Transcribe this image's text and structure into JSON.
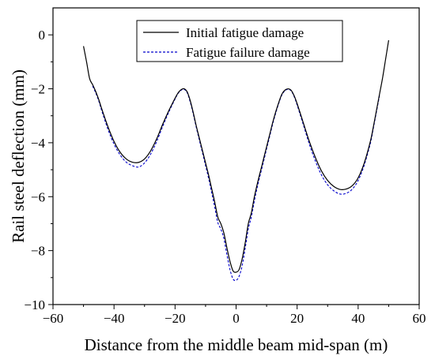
{
  "chart_data": {
    "type": "line",
    "xlabel": "Distance from the middle beam mid-span (m)",
    "ylabel": "Rail steel deflection (mm)",
    "xlim": [
      -60,
      60
    ],
    "ylim": [
      -10,
      1
    ],
    "xticks": [
      -60,
      -40,
      -20,
      0,
      20,
      40,
      60
    ],
    "yticks": [
      -10,
      -8,
      -6,
      -4,
      -2,
      0
    ],
    "minor_ticks": true,
    "grid": false,
    "legend_position": "top-center",
    "series": [
      {
        "name": "Initial fatigue damage",
        "color": "#000000",
        "style": "solid",
        "x": [
          -50,
          -49,
          -48,
          -47,
          -46,
          -45,
          -44,
          -42,
          -40,
          -38,
          -36,
          -34,
          -32,
          -30,
          -28,
          -26,
          -24,
          -22,
          -20,
          -19,
          -18,
          -17,
          -16,
          -15,
          -14,
          -13,
          -12,
          -11,
          -10,
          -9,
          -8,
          -7,
          -6,
          -5,
          -4,
          -3,
          -2,
          -1,
          0,
          1,
          2,
          3,
          4,
          5,
          6,
          7,
          8,
          9,
          10,
          11,
          12,
          13,
          14,
          15,
          16,
          17,
          18,
          19,
          20,
          22,
          24,
          26,
          28,
          30,
          32,
          34,
          36,
          38,
          40,
          42,
          44,
          45,
          46,
          47,
          48,
          49,
          50
        ],
        "values": [
          -0.42,
          -1.0,
          -1.62,
          -1.85,
          -2.1,
          -2.4,
          -2.75,
          -3.4,
          -3.95,
          -4.35,
          -4.6,
          -4.72,
          -4.73,
          -4.6,
          -4.3,
          -3.85,
          -3.3,
          -2.8,
          -2.35,
          -2.15,
          -2.03,
          -2.0,
          -2.12,
          -2.45,
          -2.9,
          -3.4,
          -3.85,
          -4.3,
          -4.75,
          -5.2,
          -5.7,
          -6.2,
          -6.75,
          -7.0,
          -7.35,
          -7.9,
          -8.4,
          -8.75,
          -8.8,
          -8.7,
          -8.3,
          -7.7,
          -7.0,
          -6.6,
          -6.0,
          -5.5,
          -5.05,
          -4.6,
          -4.15,
          -3.7,
          -3.25,
          -2.85,
          -2.5,
          -2.2,
          -2.05,
          -2.0,
          -2.05,
          -2.25,
          -2.55,
          -3.25,
          -3.95,
          -4.55,
          -5.05,
          -5.4,
          -5.62,
          -5.73,
          -5.72,
          -5.6,
          -5.3,
          -4.75,
          -3.95,
          -3.4,
          -2.8,
          -2.2,
          -1.6,
          -0.9,
          -0.2
        ]
      },
      {
        "name": "Fatigue failure damage",
        "color": "#0000cc",
        "style": "dashed",
        "x": [
          -47,
          -46,
          -45,
          -44,
          -42,
          -40,
          -38,
          -36,
          -34,
          -32,
          -30,
          -28,
          -26,
          -24,
          -22,
          -20,
          -19,
          -18,
          -17,
          -16,
          -15,
          -14,
          -13,
          -12,
          -11,
          -10,
          -9,
          -8,
          -7,
          -6,
          -5,
          -4,
          -3,
          -2,
          -1,
          0,
          1,
          2,
          3,
          4,
          5,
          6,
          7,
          8,
          9,
          10,
          11,
          12,
          13,
          14,
          15,
          16,
          17,
          18,
          19,
          20,
          22,
          24,
          26,
          28,
          30,
          32,
          34,
          36,
          38,
          40,
          42,
          44,
          45,
          46,
          47
        ],
        "values": [
          -1.9,
          -2.15,
          -2.45,
          -2.82,
          -3.5,
          -4.05,
          -4.45,
          -4.72,
          -4.85,
          -4.9,
          -4.75,
          -4.42,
          -3.95,
          -3.38,
          -2.85,
          -2.38,
          -2.17,
          -2.05,
          -2.02,
          -2.15,
          -2.5,
          -2.95,
          -3.45,
          -3.92,
          -4.38,
          -4.85,
          -5.32,
          -5.85,
          -6.38,
          -6.95,
          -7.2,
          -7.55,
          -8.15,
          -8.7,
          -9.05,
          -9.1,
          -8.95,
          -8.55,
          -7.9,
          -7.2,
          -6.75,
          -6.15,
          -5.62,
          -5.15,
          -4.7,
          -4.22,
          -3.77,
          -3.3,
          -2.9,
          -2.53,
          -2.23,
          -2.07,
          -2.02,
          -2.07,
          -2.28,
          -2.6,
          -3.32,
          -4.05,
          -4.68,
          -5.2,
          -5.56,
          -5.78,
          -5.9,
          -5.88,
          -5.73,
          -5.4,
          -4.83,
          -4.02,
          -3.45,
          -2.85,
          -2.25
        ]
      }
    ]
  }
}
